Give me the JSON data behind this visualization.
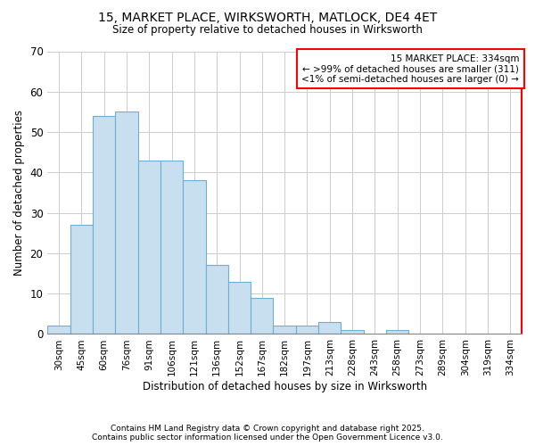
{
  "title1": "15, MARKET PLACE, WIRKSWORTH, MATLOCK, DE4 4ET",
  "title2": "Size of property relative to detached houses in Wirksworth",
  "xlabel": "Distribution of detached houses by size in Wirksworth",
  "ylabel": "Number of detached properties",
  "categories": [
    "30sqm",
    "45sqm",
    "60sqm",
    "76sqm",
    "91sqm",
    "106sqm",
    "121sqm",
    "136sqm",
    "152sqm",
    "167sqm",
    "182sqm",
    "197sqm",
    "213sqm",
    "228sqm",
    "243sqm",
    "258sqm",
    "273sqm",
    "289sqm",
    "304sqm",
    "319sqm",
    "334sqm"
  ],
  "values": [
    2,
    27,
    54,
    55,
    43,
    43,
    38,
    17,
    13,
    9,
    2,
    2,
    3,
    1,
    0,
    1,
    0,
    0,
    0,
    0,
    0
  ],
  "bar_color": "#c8dff0",
  "bar_edge_color": "#6baed6",
  "ylim": [
    0,
    70
  ],
  "yticks": [
    0,
    10,
    20,
    30,
    40,
    50,
    60,
    70
  ],
  "annotation_title": "15 MARKET PLACE: 334sqm",
  "annotation_line2": "← >99% of detached houses are smaller (311)",
  "annotation_line3": "<1% of semi-detached houses are larger (0) →",
  "annotation_box_color": "#ffffff",
  "annotation_box_edge": "#ff0000",
  "footer1": "Contains HM Land Registry data © Crown copyright and database right 2025.",
  "footer2": "Contains public sector information licensed under the Open Government Licence v3.0.",
  "background_color": "#ffffff",
  "grid_color": "#cccccc",
  "right_spine_color": "#ff0000"
}
